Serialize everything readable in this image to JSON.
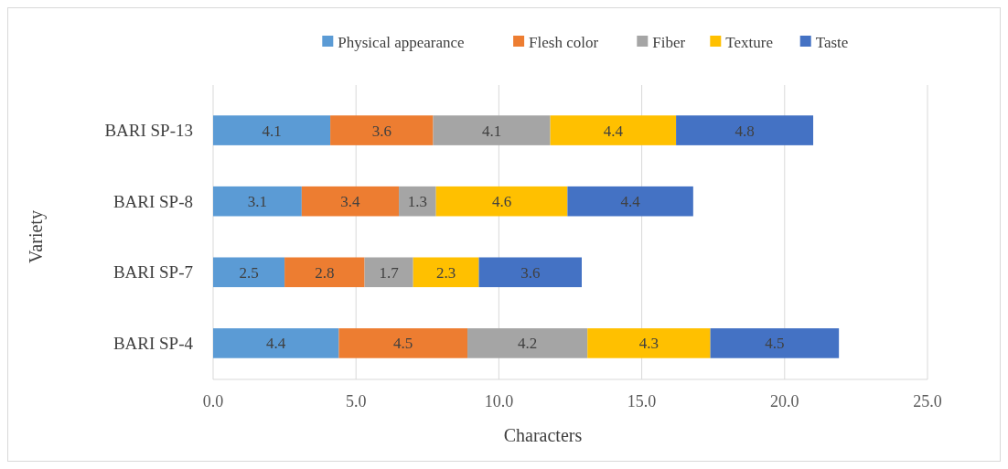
{
  "chart_data": {
    "type": "bar",
    "orientation": "horizontal",
    "stacked": true,
    "xlabel": "Characters",
    "ylabel": "Variety",
    "categories": [
      "BARI SP-13",
      "BARI SP-8",
      "BARI SP-7",
      "BARI SP-4"
    ],
    "series": [
      {
        "name": "Physical appearance",
        "color": "#5b9bd5",
        "values": [
          4.1,
          3.1,
          2.5,
          4.4
        ]
      },
      {
        "name": "Flesh color",
        "color": "#ed7d31",
        "values": [
          3.6,
          3.4,
          2.8,
          4.5
        ]
      },
      {
        "name": "Fiber",
        "color": "#a5a5a5",
        "values": [
          4.1,
          1.3,
          1.7,
          4.2
        ]
      },
      {
        "name": "Texture",
        "color": "#ffc000",
        "values": [
          4.4,
          4.6,
          2.3,
          4.3
        ]
      },
      {
        "name": "Taste",
        "color": "#4472c4",
        "values": [
          4.8,
          4.4,
          3.6,
          4.5
        ]
      }
    ],
    "xlim": [
      0,
      25
    ],
    "xticks": [
      {
        "value": 0,
        "label": "0.0"
      },
      {
        "value": 5,
        "label": "5.0"
      },
      {
        "value": 10,
        "label": "10.0"
      },
      {
        "value": 15,
        "label": "15.0"
      },
      {
        "value": 20,
        "label": "20.0"
      },
      {
        "value": 25,
        "label": "25.0"
      }
    ],
    "grid": "x",
    "legend": "top",
    "data_labels": true
  }
}
